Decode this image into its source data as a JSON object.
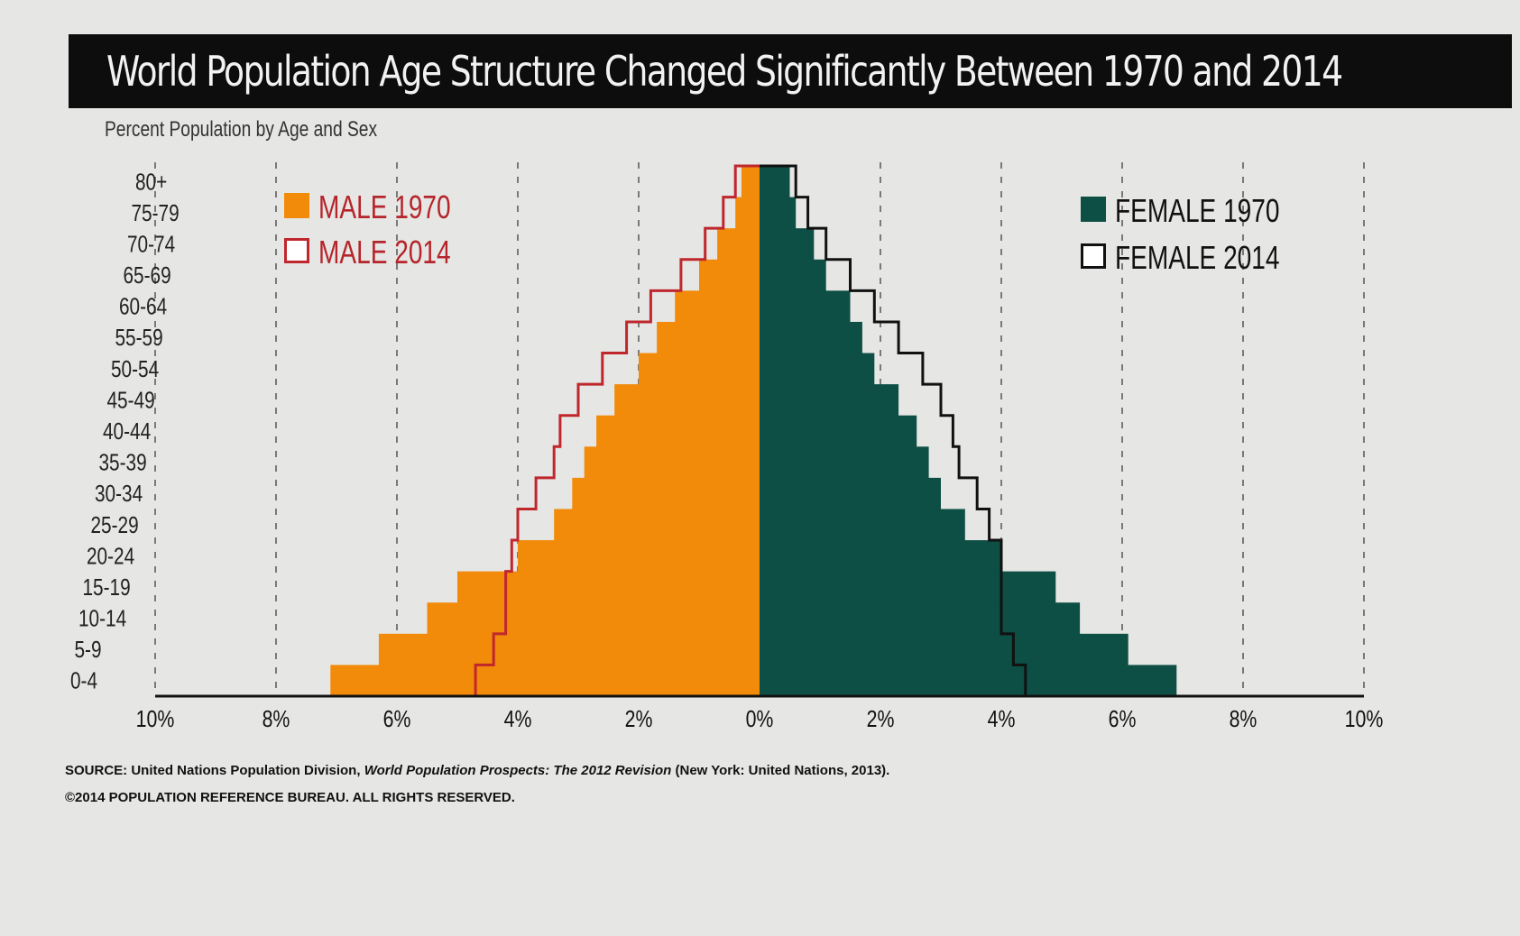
{
  "title": "World Population Age Structure Changed Significantly Between 1970 and 2014",
  "subtitle": "Percent Population by Age and Sex",
  "source": {
    "prefix": "SOURCE: United Nations Population Division, ",
    "work": "World Population Prospects: The 2012 Revision",
    "suffix": " (New York: United Nations, 2013).",
    "copyright": "©2014 POPULATION REFERENCE BUREAU. ALL RIGHTS RESERVED."
  },
  "chart_data": {
    "type": "bar",
    "orientation": "horizontal population pyramid",
    "categories": [
      "0-4",
      "5-9",
      "10-14",
      "15-19",
      "20-24",
      "25-29",
      "30-34",
      "35-39",
      "40-44",
      "45-49",
      "50-54",
      "55-59",
      "60-64",
      "65-69",
      "70-74",
      "75-79",
      "80+"
    ],
    "x_tick_labels": [
      "10%",
      "8%",
      "6%",
      "4%",
      "2%",
      "0%",
      "2%",
      "4%",
      "6%",
      "8%",
      "10%"
    ],
    "xlim": [
      -10,
      10
    ],
    "grid": "vertical dashed",
    "series": [
      {
        "name": "MALE 1970",
        "side": "left",
        "style": "filled",
        "color": "#f28a0a",
        "values": [
          7.1,
          6.3,
          5.5,
          5.0,
          4.0,
          3.4,
          3.1,
          2.9,
          2.7,
          2.4,
          2.0,
          1.7,
          1.4,
          1.0,
          0.7,
          0.4,
          0.3
        ]
      },
      {
        "name": "MALE 2014",
        "side": "left",
        "style": "outline",
        "color": "#c0272d",
        "values": [
          4.7,
          4.4,
          4.2,
          4.2,
          4.1,
          4.0,
          3.7,
          3.4,
          3.3,
          3.0,
          2.6,
          2.2,
          1.8,
          1.3,
          0.9,
          0.6,
          0.4
        ]
      },
      {
        "name": "FEMALE 1970",
        "side": "right",
        "style": "filled",
        "color": "#0d4f45",
        "values": [
          6.9,
          6.1,
          5.3,
          4.9,
          4.0,
          3.4,
          3.0,
          2.8,
          2.6,
          2.3,
          1.9,
          1.7,
          1.5,
          1.1,
          0.9,
          0.6,
          0.5
        ]
      },
      {
        "name": "FEMALE 2014",
        "side": "right",
        "style": "outline",
        "color": "#111111",
        "values": [
          4.4,
          4.2,
          4.0,
          4.0,
          4.0,
          3.8,
          3.6,
          3.3,
          3.2,
          3.0,
          2.7,
          2.3,
          1.9,
          1.5,
          1.1,
          0.8,
          0.6
        ]
      }
    ],
    "legend": "male entries top-left, female entries top-right"
  }
}
